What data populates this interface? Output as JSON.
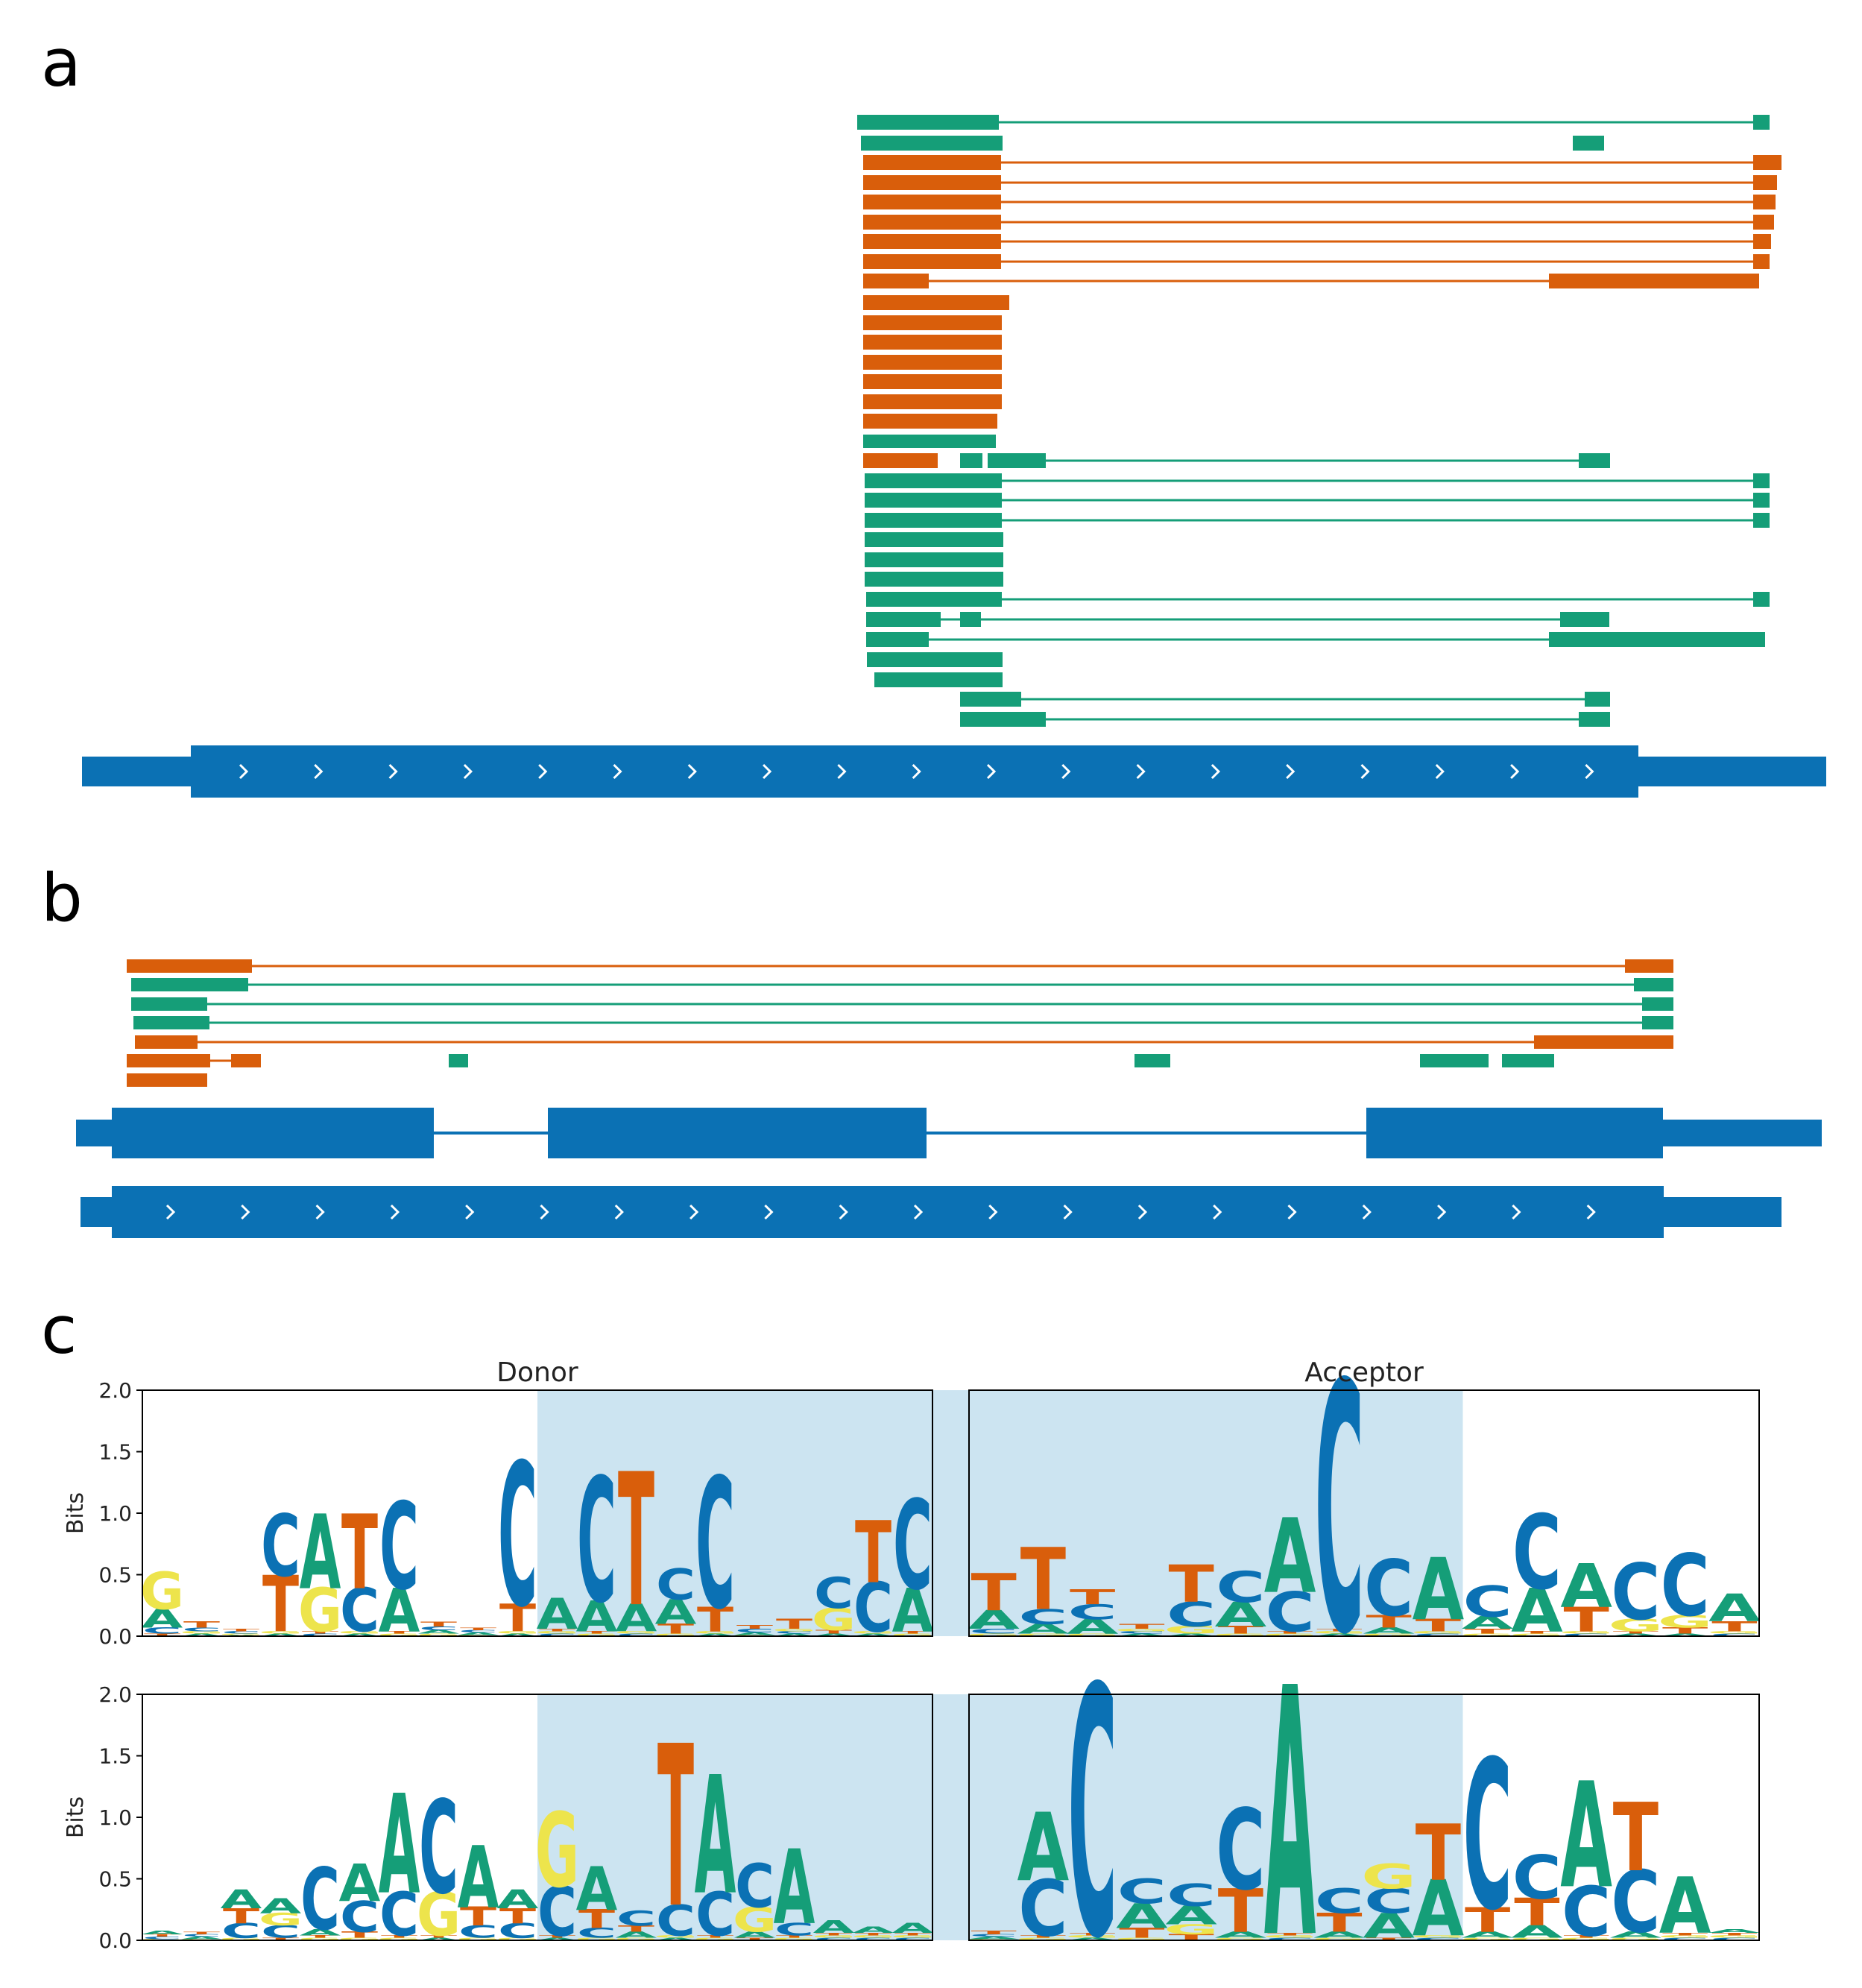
{
  "colors": {
    "teal": "#159e78",
    "orange": "#d95e0b",
    "blue": "#0b71b4",
    "highlight": "#cce4f1",
    "A": "#159e78",
    "C": "#0b71b4",
    "G": "#ede44c",
    "T": "#d95e0b"
  },
  "panels": {
    "a": {
      "letter": "a"
    },
    "b": {
      "letter": "b"
    },
    "c": {
      "letter": "c"
    }
  },
  "chart_data": [
    {
      "type": "sequence_logo",
      "title": "Donor",
      "ylabel": "Bits",
      "ylim": [
        0,
        2
      ],
      "yticks": [
        "0.0",
        "0.5",
        "1.0",
        "1.5",
        "2.0"
      ],
      "highlight_positions": [
        11,
        21
      ],
      "positions": [
        {
          "A": 0.15,
          "C": 0.05,
          "G": 0.3,
          "T": 0.02
        },
        {
          "A": 0.02,
          "C": 0.03,
          "G": 0.02,
          "T": 0.05
        },
        {
          "A": 0.01,
          "C": 0.02,
          "G": 0.01,
          "T": 0.02
        },
        {
          "A": 0.02,
          "C": 0.5,
          "G": 0.02,
          "T": 0.45
        },
        {
          "A": 0.6,
          "C": 0.02,
          "G": 0.35,
          "T": 0.02
        },
        {
          "A": 0.02,
          "C": 0.35,
          "G": 0.02,
          "T": 0.6
        },
        {
          "A": 0.35,
          "C": 0.7,
          "G": 0.02,
          "T": 0.02
        },
        {
          "A": 0.03,
          "C": 0.03,
          "G": 0.02,
          "T": 0.04
        },
        {
          "A": 0.02,
          "C": 0.02,
          "G": 0.01,
          "T": 0.02
        },
        {
          "A": 0.02,
          "C": 1.15,
          "G": 0.02,
          "T": 0.22
        },
        {
          "A": 0.25,
          "C": 0.02,
          "G": 0.02,
          "T": 0.02
        },
        {
          "A": 0.25,
          "C": 1.0,
          "G": 0.02,
          "T": 0.02
        },
        {
          "A": 0.22,
          "C": 0.02,
          "G": 0.02,
          "T": 1.07
        },
        {
          "A": 0.2,
          "C": 0.25,
          "G": 0.02,
          "T": 0.08
        },
        {
          "A": 0.02,
          "C": 1.05,
          "G": 0.02,
          "T": 0.2
        },
        {
          "A": 0.02,
          "C": 0.03,
          "G": 0.01,
          "T": 0.03
        },
        {
          "A": 0.02,
          "C": 0.02,
          "G": 0.02,
          "T": 0.08
        },
        {
          "A": 0.02,
          "C": 0.25,
          "G": 0.18,
          "T": 0.03
        },
        {
          "A": 0.02,
          "C": 0.4,
          "G": 0.02,
          "T": 0.5
        },
        {
          "A": 0.35,
          "C": 0.72,
          "G": 0.02,
          "T": 0.02
        }
      ]
    },
    {
      "type": "sequence_logo",
      "title": "Acceptor",
      "ylabel": "",
      "ylim": [
        0,
        2
      ],
      "yticks": [],
      "highlight_positions": [
        1,
        10
      ],
      "positions": [
        {
          "A": 0.15,
          "C": 0.04,
          "G": 0.02,
          "T": 0.3
        },
        {
          "A": 0.08,
          "C": 0.12,
          "G": 0.02,
          "T": 0.5
        },
        {
          "A": 0.12,
          "C": 0.12,
          "G": 0.02,
          "T": 0.12
        },
        {
          "A": 0.02,
          "C": 0.02,
          "G": 0.02,
          "T": 0.04
        },
        {
          "A": 0.02,
          "C": 0.2,
          "G": 0.06,
          "T": 0.3
        },
        {
          "A": 0.2,
          "C": 0.25,
          "G": 0.02,
          "T": 0.06
        },
        {
          "A": 0.6,
          "C": 0.32,
          "G": 0.02,
          "T": 0.02
        },
        {
          "A": 0.02,
          "C": 2.0,
          "G": 0.02,
          "T": 0.02
        },
        {
          "A": 0.05,
          "C": 0.45,
          "G": 0.02,
          "T": 0.1
        },
        {
          "A": 0.5,
          "C": 0.02,
          "G": 0.02,
          "T": 0.1
        },
        {
          "A": 0.1,
          "C": 0.25,
          "G": 0.02,
          "T": 0.04
        },
        {
          "A": 0.35,
          "C": 0.6,
          "G": 0.02,
          "T": 0.02
        },
        {
          "A": 0.35,
          "C": 0.02,
          "G": 0.02,
          "T": 0.2
        },
        {
          "A": 0.02,
          "C": 0.45,
          "G": 0.1,
          "T": 0.02
        },
        {
          "A": 0.02,
          "C": 0.5,
          "G": 0.1,
          "T": 0.05
        },
        {
          "A": 0.22,
          "C": 0.02,
          "G": 0.02,
          "T": 0.08
        }
      ]
    },
    {
      "type": "sequence_logo",
      "title": "",
      "ylabel": "Bits",
      "ylim": [
        0,
        2
      ],
      "yticks": [
        "0.0",
        "0.5",
        "1.0",
        "1.5",
        "2.0"
      ],
      "highlight_positions": [
        11,
        21
      ],
      "positions": [
        {
          "A": 0.03,
          "C": 0.02,
          "G": 0.01,
          "T": 0.02
        },
        {
          "A": 0.02,
          "C": 0.02,
          "G": 0.01,
          "T": 0.02
        },
        {
          "A": 0.15,
          "C": 0.12,
          "G": 0.02,
          "T": 0.12
        },
        {
          "A": 0.12,
          "C": 0.1,
          "G": 0.1,
          "T": 0.02
        },
        {
          "A": 0.05,
          "C": 0.5,
          "G": 0.02,
          "T": 0.02
        },
        {
          "A": 0.3,
          "C": 0.25,
          "G": 0.02,
          "T": 0.05
        },
        {
          "A": 0.8,
          "C": 0.35,
          "G": 0.02,
          "T": 0.02
        },
        {
          "A": 0.02,
          "C": 0.75,
          "G": 0.35,
          "T": 0.02
        },
        {
          "A": 0.5,
          "C": 0.1,
          "G": 0.02,
          "T": 0.15
        },
        {
          "A": 0.15,
          "C": 0.12,
          "G": 0.02,
          "T": 0.12
        },
        {
          "A": 0.02,
          "C": 0.4,
          "G": 0.6,
          "T": 0.02
        },
        {
          "A": 0.35,
          "C": 0.08,
          "G": 0.02,
          "T": 0.15
        },
        {
          "A": 0.05,
          "C": 0.12,
          "G": 0.02,
          "T": 0.05
        },
        {
          "A": 0.02,
          "C": 0.25,
          "G": 0.02,
          "T": 1.3
        },
        {
          "A": 0.95,
          "C": 0.35,
          "G": 0.02,
          "T": 0.02
        },
        {
          "A": 0.05,
          "C": 0.35,
          "G": 0.2,
          "T": 0.02
        },
        {
          "A": 0.6,
          "C": 0.1,
          "G": 0.02,
          "T": 0.02
        },
        {
          "A": 0.1,
          "C": 0.02,
          "G": 0.02,
          "T": 0.02
        },
        {
          "A": 0.05,
          "C": 0.02,
          "G": 0.02,
          "T": 0.02
        },
        {
          "A": 0.08,
          "C": 0.02,
          "G": 0.02,
          "T": 0.02
        }
      ]
    },
    {
      "type": "sequence_logo",
      "title": "",
      "ylabel": "",
      "ylim": [
        0,
        2
      ],
      "yticks": [],
      "highlight_positions": [
        1,
        10
      ],
      "positions": [
        {
          "A": 0.02,
          "C": 0.02,
          "G": 0.01,
          "T": 0.03
        },
        {
          "A": 0.55,
          "C": 0.45,
          "G": 0.02,
          "T": 0.02
        },
        {
          "A": 0.02,
          "C": 2.0,
          "G": 0.02,
          "T": 0.02
        },
        {
          "A": 0.2,
          "C": 0.2,
          "G": 0.02,
          "T": 0.08
        },
        {
          "A": 0.15,
          "C": 0.18,
          "G": 0.08,
          "T": 0.05
        },
        {
          "A": 0.05,
          "C": 0.65,
          "G": 0.02,
          "T": 0.35
        },
        {
          "A": 2.0,
          "C": 0.02,
          "G": 0.02,
          "T": 0.02
        },
        {
          "A": 0.05,
          "C": 0.2,
          "G": 0.02,
          "T": 0.15
        },
        {
          "A": 0.2,
          "C": 0.2,
          "G": 0.2,
          "T": 0.02
        },
        {
          "A": 0.45,
          "C": 0.02,
          "G": 0.02,
          "T": 0.45
        },
        {
          "A": 0.05,
          "C": 1.2,
          "G": 0.02,
          "T": 0.2
        },
        {
          "A": 0.1,
          "C": 0.35,
          "G": 0.02,
          "T": 0.22
        },
        {
          "A": 0.85,
          "C": 0.4,
          "G": 0.02,
          "T": 0.02
        },
        {
          "A": 0.05,
          "C": 0.5,
          "G": 0.02,
          "T": 0.55
        },
        {
          "A": 0.45,
          "C": 0.02,
          "G": 0.02,
          "T": 0.02
        },
        {
          "A": 0.03,
          "C": 0.02,
          "G": 0.02,
          "T": 0.02
        }
      ]
    }
  ]
}
